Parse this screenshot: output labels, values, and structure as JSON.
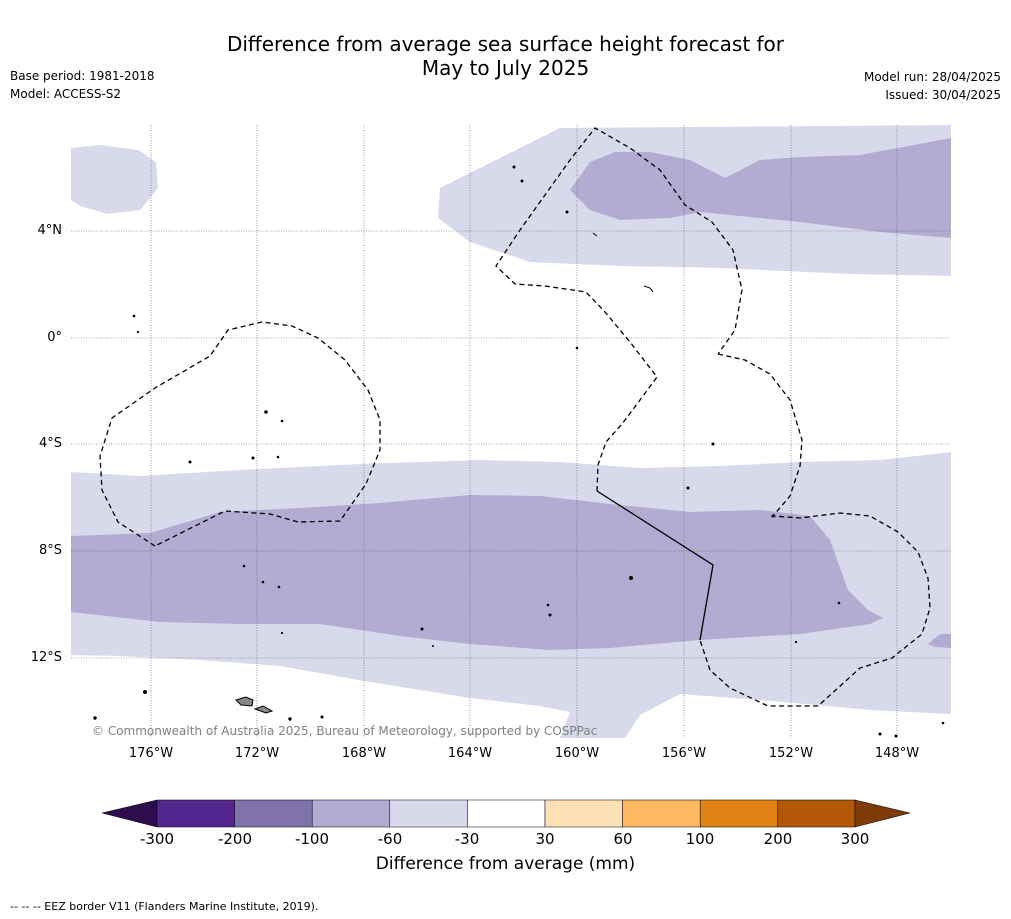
{
  "header": {
    "title_line1": "Difference from average sea surface height forecast for",
    "title_line2": "May to July 2025",
    "base_period": "Base period: 1981-2018",
    "model": "Model: ACCESS-S2",
    "model_run": "Model run: 28/04/2025",
    "issued": "Issued: 30/04/2025"
  },
  "map": {
    "lat_labels": [
      "4°N",
      "0°",
      "4°S",
      "8°S",
      "12°S"
    ],
    "lon_labels": [
      "176°W",
      "172°W",
      "168°W",
      "164°W",
      "160°W",
      "156°W",
      "152°W",
      "148°W"
    ],
    "copyright": "© Commonwealth of Australia 2025, Bureau of Meteorology, supported by COSPPac"
  },
  "colorbar": {
    "ticks": [
      "-300",
      "-200",
      "-100",
      "-60",
      "-30",
      "30",
      "60",
      "100",
      "200",
      "300"
    ],
    "colors": [
      "#2d0d4e",
      "#54278f",
      "#8073ac",
      "#b2abd2",
      "#d8daeb",
      "#ffffff",
      "#fee0b6",
      "#fdb863",
      "#e08214",
      "#b35806",
      "#7f3b08"
    ],
    "title": "Difference from average (mm)"
  },
  "footer": {
    "legend": "--  --  -- EEZ border V11 (Flanders Marine Institute, 2019)."
  }
}
